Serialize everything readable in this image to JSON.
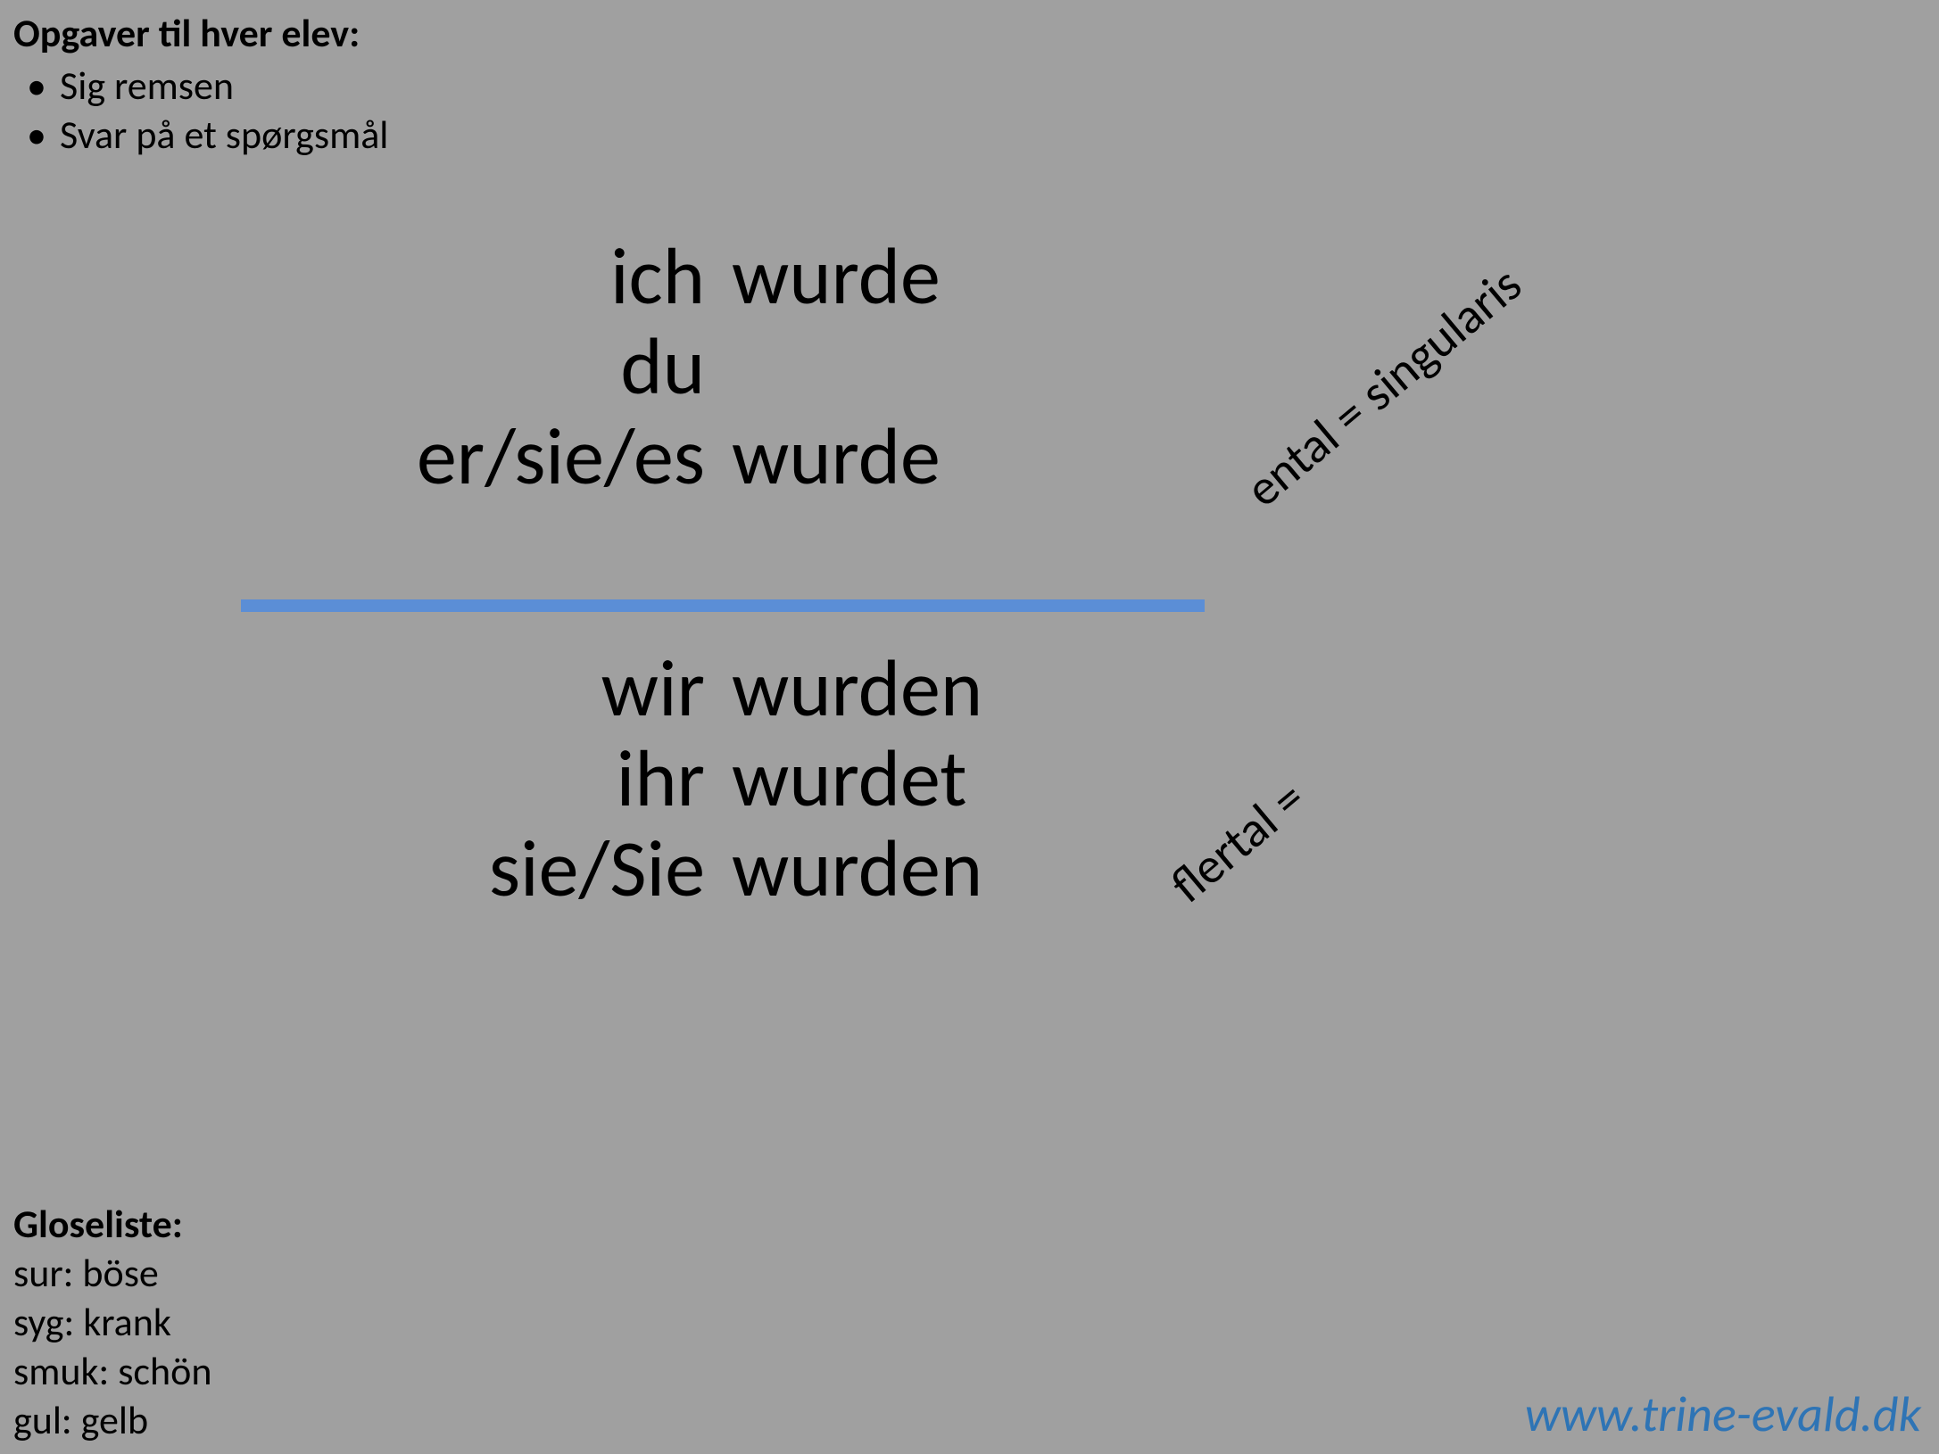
{
  "tasks": {
    "title": "Opgaver til hver elev:",
    "items": [
      "Sig remsen",
      "Svar på et spørgsmål"
    ]
  },
  "conjugation": {
    "singular": [
      {
        "pronoun": "ich",
        "verb": "wurde"
      },
      {
        "pronoun": "du",
        "verb": ""
      },
      {
        "pronoun": "er/sie/es",
        "verb": "wurde"
      }
    ],
    "plural": [
      {
        "pronoun": "wir",
        "verb": "wurden"
      },
      {
        "pronoun": "ihr",
        "verb": "wurdet"
      },
      {
        "pronoun": "sie/Sie",
        "verb": "wurden"
      }
    ],
    "divider_color": "#5b8ed6"
  },
  "labels": {
    "singular": "ental  =  singularis",
    "plural": "flertal  ="
  },
  "glossary": {
    "title": "Gloseliste:",
    "entries": [
      "sur: böse",
      "syg: krank",
      "smuk: schön",
      "gul: gelb"
    ]
  },
  "url": "www.trine-evald.dk",
  "colors": {
    "background": "#a0a0a0",
    "text": "#000000",
    "link": "#2e74b5",
    "divider": "#5b8ed6"
  },
  "fonts": {
    "body_family": "Calibri",
    "tasks_size_pt": 33,
    "conjugation_size_pt": 68,
    "label_size_pt": 42,
    "url_size_pt": 42
  }
}
